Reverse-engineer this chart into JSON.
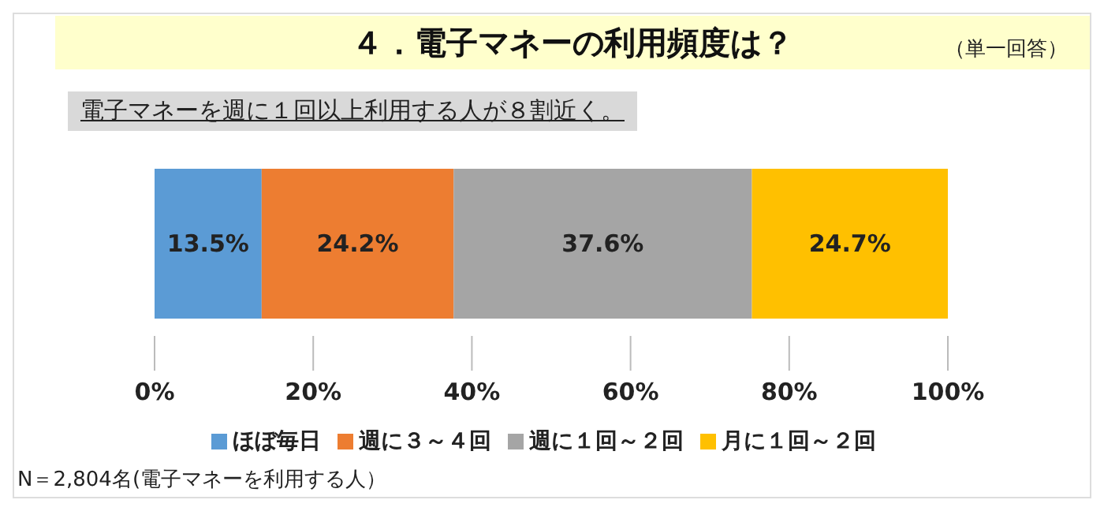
{
  "chart_data": {
    "type": "bar",
    "orientation": "horizontal",
    "stacked": true,
    "title": "４．電子マネーの利用頻度は？",
    "subtitle": "電子マネーを週に１回以上利用する人が８割近く。",
    "annotations": [
      "（単一回答）",
      "N＝2,804名(電子マネーを利用する人）"
    ],
    "categories": [
      null
    ],
    "series": [
      {
        "name": "ほぼ毎日",
        "color": "#5b9bd5",
        "values": [
          13.5
        ],
        "value_labels": [
          "13.5%"
        ]
      },
      {
        "name": "週に３～４回",
        "color": "#ed7d31",
        "values": [
          24.2
        ],
        "value_labels": [
          "24.2%"
        ]
      },
      {
        "name": "週に１回～２回",
        "color": "#a5a5a5",
        "values": [
          37.6
        ],
        "value_labels": [
          "37.6%"
        ]
      },
      {
        "name": "月に１回～２回",
        "color": "#ffc000",
        "values": [
          24.7
        ],
        "value_labels": [
          "24.7%"
        ]
      }
    ],
    "xlim": [
      0,
      100
    ],
    "xticks": [
      {
        "value": 0,
        "label": "0%"
      },
      {
        "value": 20,
        "label": "20%"
      },
      {
        "value": 40,
        "label": "40%"
      },
      {
        "value": 60,
        "label": "60%"
      },
      {
        "value": 80,
        "label": "80%"
      },
      {
        "value": 100,
        "label": "100%"
      }
    ],
    "grid": false,
    "legend": "bottom"
  }
}
